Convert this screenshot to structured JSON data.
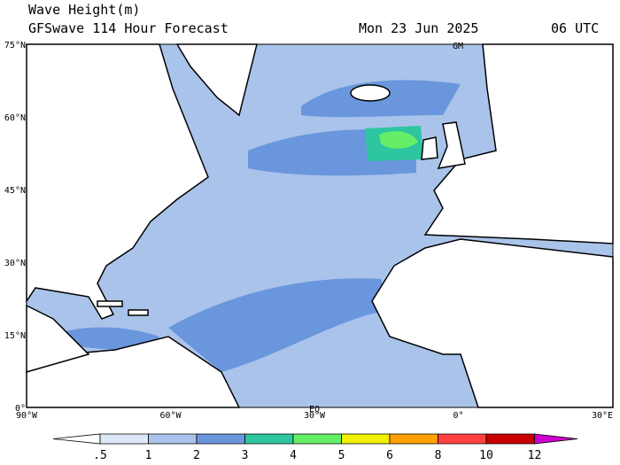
{
  "header": {
    "title": "Wave Height(m)",
    "subtitle": "GFSwave 114 Hour Forecast",
    "date": "Mon 23 Jun 2025",
    "time": "06 UTC"
  },
  "map": {
    "lat_labels": [
      "75°N",
      "60°N",
      "45°N",
      "30°N",
      "15°N",
      "0°"
    ],
    "lon_labels": [
      "90°W",
      "60°W",
      "30°W",
      "0°",
      "30°E"
    ],
    "markers": [
      "GM",
      "EQ"
    ]
  },
  "colorbar": {
    "ticks": [
      {
        "value": 0.5,
        "label": ".5"
      },
      1,
      2,
      3,
      4,
      5,
      6,
      8,
      10,
      12
    ],
    "colors": [
      "#ffffff",
      "#dce8f8",
      "#aac3ea",
      "#6a96dd",
      "#2ec6a0",
      "#66ef66",
      "#f0f000",
      "#ffa000",
      "#ff4040",
      "#c80000",
      "#d000d0"
    ]
  }
}
